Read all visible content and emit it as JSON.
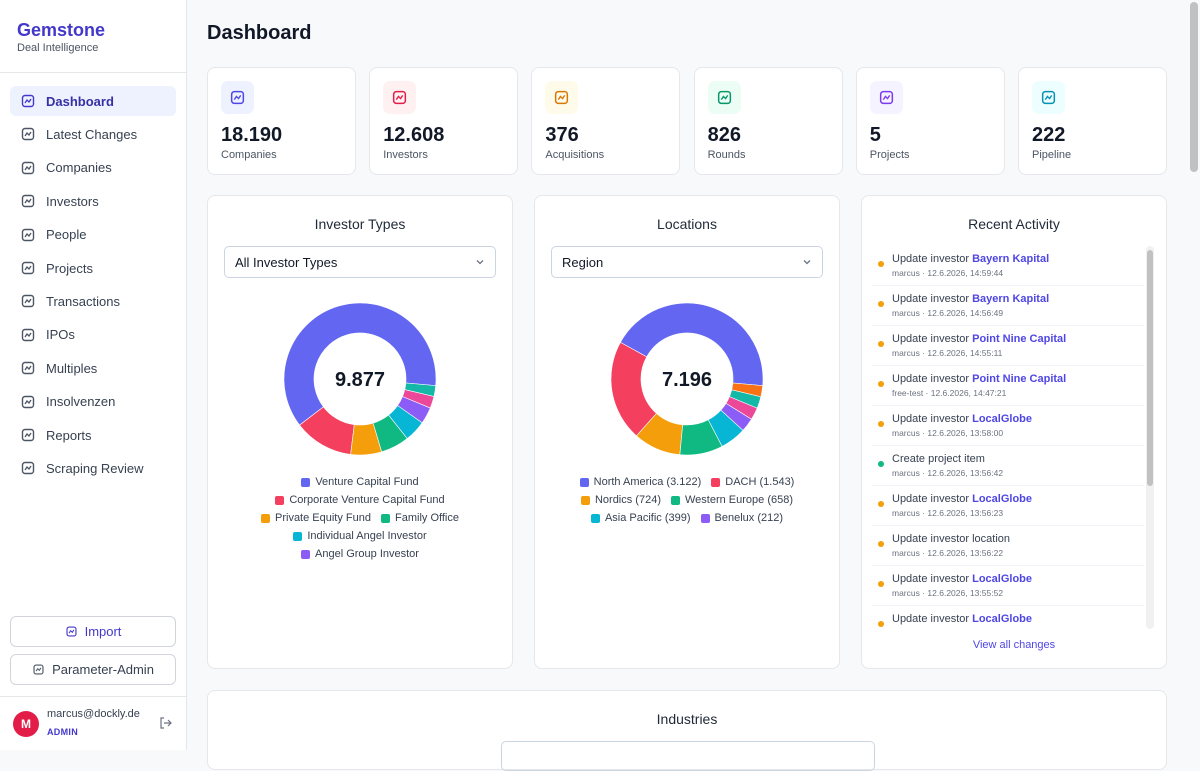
{
  "sidebar": {
    "brand": "Gemstone",
    "tagline": "Deal Intelligence",
    "nav": [
      "Dashboard",
      "Latest Changes",
      "Companies",
      "Investors",
      "People",
      "Projects",
      "Transactions",
      "IPOs",
      "Multiples",
      "Insolvenzen",
      "Reports",
      "Scraping Review"
    ],
    "buttons": [
      "Import",
      "Parameter-Admin"
    ],
    "user": {
      "avatar": "M",
      "email": "marcus@dockly.de",
      "role": "ADMIN"
    }
  },
  "header": {
    "title": "Dashboard"
  },
  "stats": [
    {
      "value": "18.190",
      "label": "Companies",
      "color": "#4f46e5",
      "bg": "#eef2ff"
    },
    {
      "value": "12.608",
      "label": "Investors",
      "color": "#e11d48",
      "bg": "#fff1f2"
    },
    {
      "value": "376",
      "label": "Acquisitions",
      "color": "#d97706",
      "bg": "#fffbeb"
    },
    {
      "value": "826",
      "label": "Rounds",
      "color": "#059669",
      "bg": "#ecfdf5"
    },
    {
      "value": "5",
      "label": "Projects",
      "color": "#7c3aed",
      "bg": "#f5f3ff"
    },
    {
      "value": "222",
      "label": "Pipeline",
      "color": "#0891b2",
      "bg": "#ecfeff"
    }
  ],
  "investor_types": {
    "title": "Investor Types",
    "filter": "All Investor Types",
    "total": "9.877",
    "slices": [
      {
        "name": "Venture Capital Fund",
        "color": "#6366f1",
        "value": 6100
      },
      {
        "name": "Corporate Venture Capital Fund",
        "color": "#f43f5e",
        "value": 1250
      },
      {
        "name": "Private Equity Fund",
        "color": "#f59e0b",
        "value": 650
      },
      {
        "name": "Family Office",
        "color": "#10b981",
        "value": 600
      },
      {
        "name": "Individual Angel Investor",
        "color": "#06b6d4",
        "value": 450
      },
      {
        "name": "Angel Group Investor",
        "color": "#8b5cf6",
        "value": 350
      },
      {
        "name": null,
        "color": "#ec4899",
        "value": 250
      },
      {
        "name": null,
        "color": "#14b8a6",
        "value": 227
      }
    ]
  },
  "locations": {
    "title": "Locations",
    "filter": "Region",
    "total": "7.196",
    "slices": [
      {
        "name": "North America (3.122)",
        "color": "#6366f1",
        "value": 3122
      },
      {
        "name": "DACH (1.543)",
        "color": "#f43f5e",
        "value": 1543
      },
      {
        "name": "Nordics (724)",
        "color": "#f59e0b",
        "value": 724
      },
      {
        "name": "Western Europe (658)",
        "color": "#10b981",
        "value": 658
      },
      {
        "name": "Asia Pacific (399)",
        "color": "#06b6d4",
        "value": 399
      },
      {
        "name": "Benelux (212)",
        "color": "#8b5cf6",
        "value": 212
      },
      {
        "name": null,
        "color": "#ec4899",
        "value": 188
      },
      {
        "name": null,
        "color": "#14b8a6",
        "value": 180
      },
      {
        "name": null,
        "color": "#f97316",
        "value": 170
      }
    ]
  },
  "recent_activity": {
    "title": "Recent Activity",
    "items": [
      {
        "action": "Update investor",
        "entity": "Bayern Kapital",
        "meta": "marcus · 12.6.2026, 14:59:44",
        "color": "#f59e0b"
      },
      {
        "action": "Update investor",
        "entity": "Bayern Kapital",
        "meta": "marcus · 12.6.2026, 14:56:49",
        "color": "#f59e0b"
      },
      {
        "action": "Update investor",
        "entity": "Point Nine Capital",
        "meta": "marcus · 12.6.2026, 14:55:11",
        "color": "#f59e0b"
      },
      {
        "action": "Update investor",
        "entity": "Point Nine Capital",
        "meta": "free-test · 12.6.2026, 14:47:21",
        "color": "#f59e0b"
      },
      {
        "action": "Update investor",
        "entity": "LocalGlobe",
        "meta": "marcus · 12.6.2026, 13:58:00",
        "color": "#f59e0b"
      },
      {
        "action": "Create project item",
        "meta": "marcus · 12.6.2026, 13:56:42",
        "color": "#10b981"
      },
      {
        "action": "Update investor",
        "entity": "LocalGlobe",
        "meta": "marcus · 12.6.2026, 13:56:23",
        "color": "#f59e0b"
      },
      {
        "action": "Update investor location",
        "meta": "marcus · 12.6.2026, 13:56:22",
        "color": "#f59e0b"
      },
      {
        "action": "Update investor",
        "entity": "LocalGlobe",
        "meta": "marcus · 12.6.2026, 13:55:52",
        "color": "#f59e0b"
      },
      {
        "action": "Update investor",
        "entity": "LocalGlobe",
        "color": "#f59e0b"
      }
    ],
    "link": "View all changes"
  },
  "industries": {
    "title": "Industries"
  }
}
